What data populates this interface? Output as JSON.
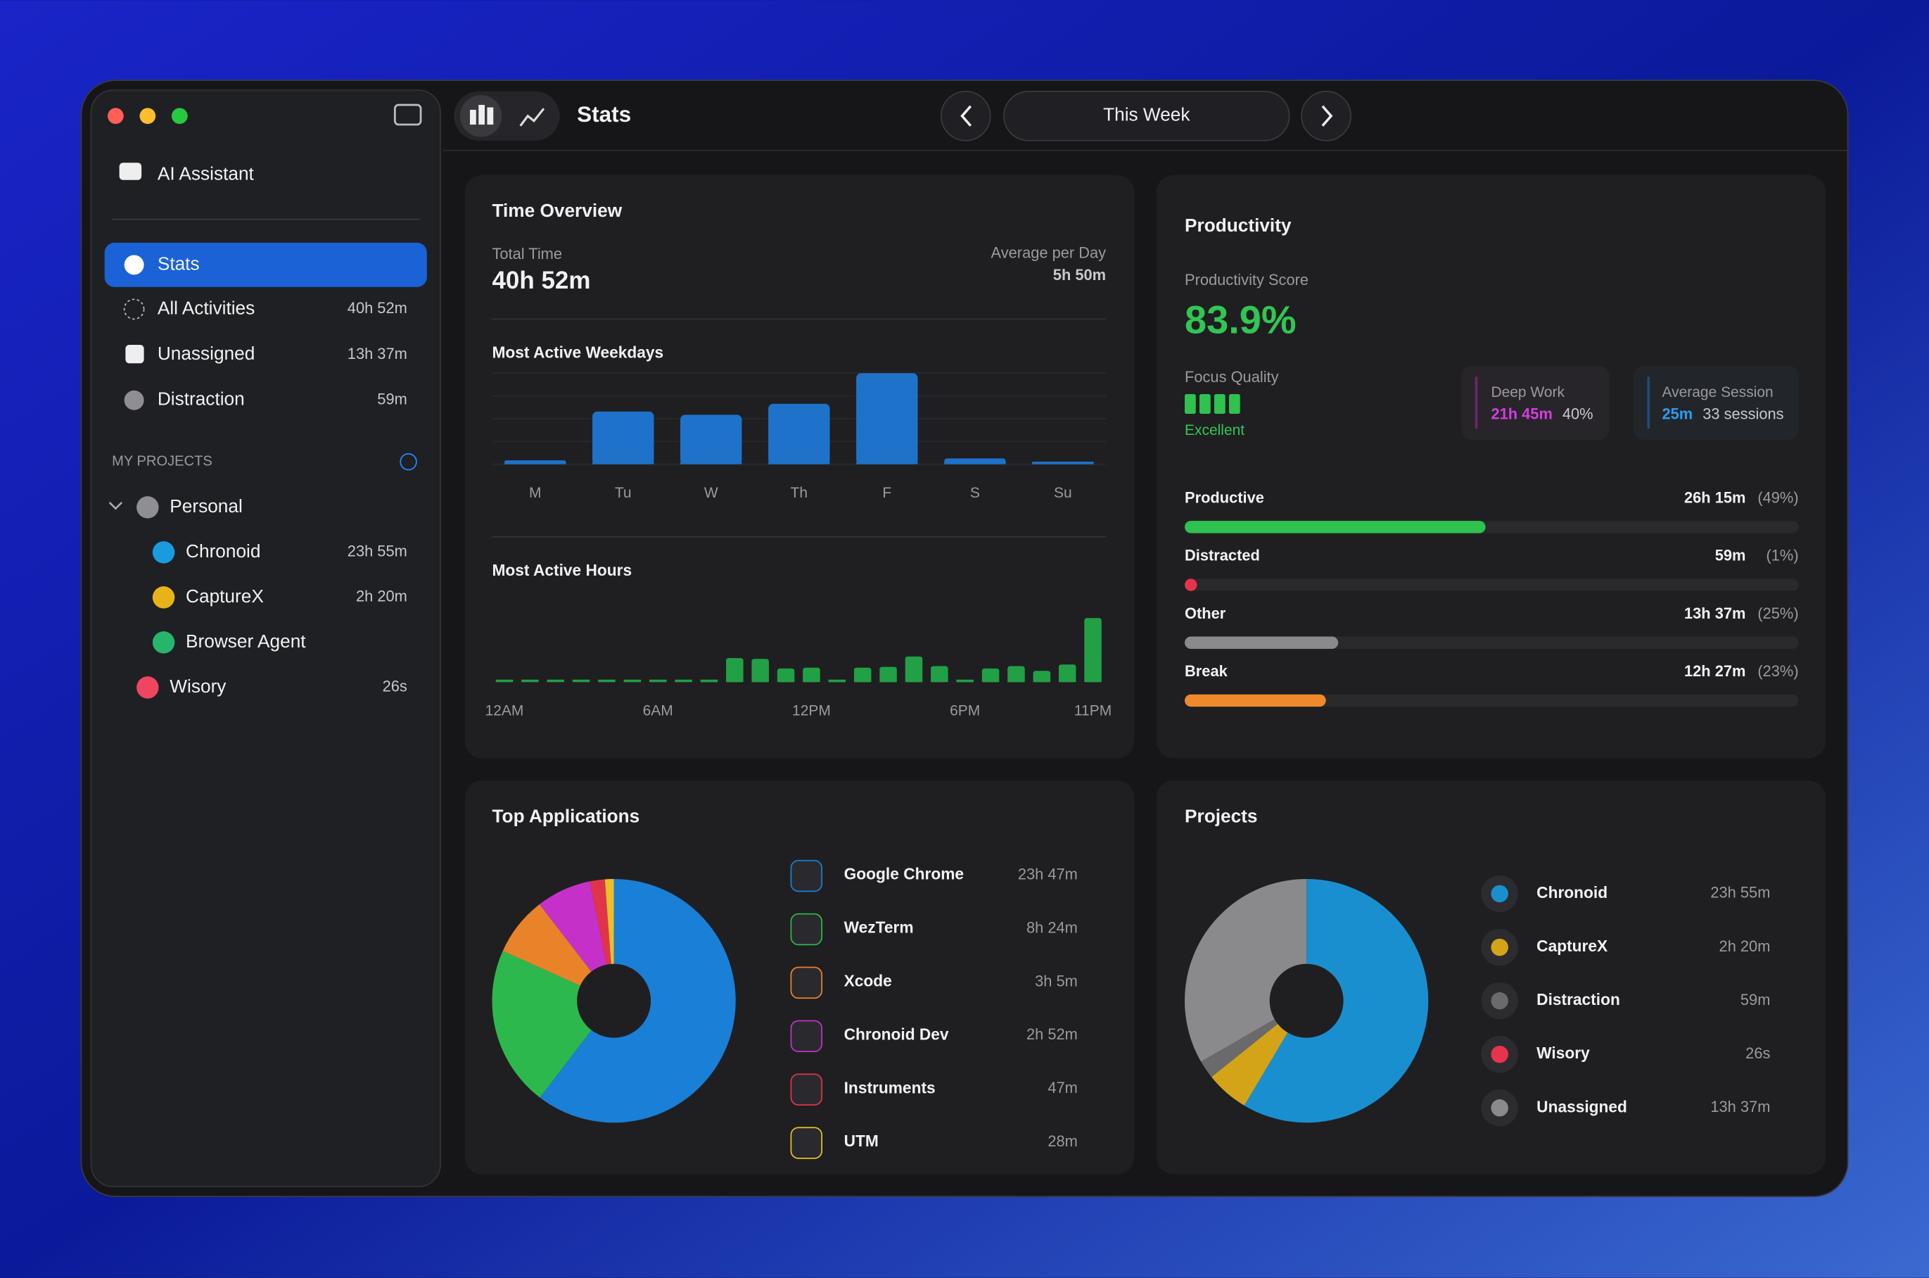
{
  "window": {
    "toolbar": {
      "title": "Stats",
      "period": "This Week"
    },
    "sidebar": {
      "assistant": "AI Assistant",
      "nav": [
        {
          "label": "Stats"
        },
        {
          "label": "All Activities",
          "value": "40h 52m"
        },
        {
          "label": "Unassigned",
          "value": "13h 37m"
        },
        {
          "label": "Distraction",
          "value": "59m"
        }
      ],
      "projects_header": "MY PROJECTS",
      "projects": [
        {
          "label": "Personal",
          "color": "#8e8e93"
        },
        {
          "label": "Chronoid",
          "value": "23h 55m",
          "color": "#1a9be0"
        },
        {
          "label": "CaptureX",
          "value": "2h 20m",
          "color": "#e8b31a"
        },
        {
          "label": "Browser Agent",
          "color": "#25b56b"
        },
        {
          "label": "Wisory",
          "value": "26s",
          "color": "#ef4560"
        }
      ]
    }
  },
  "time_overview": {
    "title": "Time Overview",
    "total_label": "Total Time",
    "total": "40h 52m",
    "average_label": "Average per Day",
    "average": "5h 50m"
  },
  "productivity": {
    "title": "Productivity",
    "score_label": "Productivity Score",
    "score": "83.9%",
    "focus_label": "Focus Quality",
    "focus": "Excellent",
    "deep_work": {
      "label": "Deep Work",
      "value": "21h 45m",
      "share": "40%"
    },
    "average_session": {
      "label": "Average Session",
      "value": "25m",
      "sessions": "33 sessions"
    }
  },
  "top_applications": {
    "title": "Top Applications"
  },
  "projects": {
    "title": "Projects"
  },
  "chart_data": [
    {
      "type": "bar",
      "title": "Most Active Weekdays",
      "categories": [
        "M",
        "Tu",
        "W",
        "Th",
        "F",
        "S",
        "Su"
      ],
      "values": [
        0.6,
        8.1,
        7.6,
        9.3,
        14,
        0.9,
        0.4
      ],
      "color": "#1f72c9"
    },
    {
      "type": "bar",
      "title": "Most Active Hours",
      "categories": [
        "12AM",
        null,
        null,
        null,
        null,
        null,
        "6AM",
        null,
        null,
        null,
        null,
        null,
        "12PM",
        null,
        null,
        null,
        null,
        null,
        "6PM",
        null,
        null,
        null,
        null,
        "11PM"
      ],
      "values": [
        0,
        0,
        0,
        0,
        0,
        0,
        0,
        0,
        5,
        150,
        145,
        85,
        90,
        10,
        90,
        95,
        160,
        100,
        10,
        85,
        100,
        70,
        110,
        400
      ],
      "color": "#22a046"
    },
    {
      "type": "hbar",
      "categories": [
        "Productive",
        "Distracted",
        "Other",
        "Break"
      ],
      "values": [
        49,
        1,
        25,
        23
      ],
      "value_labels": [
        "(49%)",
        "(1%)",
        "(25%)",
        "(23%)"
      ],
      "durations": [
        "26h 15m",
        "59m",
        "13h 37m",
        "12h 27m"
      ],
      "colors": [
        "#2fc24f",
        "#e8334a",
        "#8a8a8e",
        "#ef8a2c"
      ],
      "xlim": [
        0,
        100
      ]
    },
    {
      "type": "pie",
      "categories": [
        "Google Chrome",
        "WezTerm",
        "Xcode",
        "Chronoid Dev",
        "Instruments",
        "UTM"
      ],
      "values": [
        1427,
        504,
        185,
        172,
        47,
        28
      ],
      "value_labels": [
        "23h 47m",
        "8h 24m",
        "3h 5m",
        "2h 52m",
        "47m",
        "28m"
      ],
      "colors": [
        "#1a7fd6",
        "#2db84d",
        "#e8832a",
        "#c531c8",
        "#e0344a",
        "#e8c02a"
      ]
    },
    {
      "type": "pie",
      "categories": [
        "Chronoid",
        "CaptureX",
        "Distraction",
        "Wisory",
        "Unassigned"
      ],
      "values": [
        1435,
        140,
        59,
        0.433,
        817
      ],
      "value_labels": [
        "23h 55m",
        "2h 20m",
        "59m",
        "26s",
        "13h 37m"
      ],
      "colors": [
        "#1a8fd0",
        "#d4a418",
        "#6a6a6c",
        "#e8334f",
        "#8a8a8c"
      ]
    }
  ]
}
